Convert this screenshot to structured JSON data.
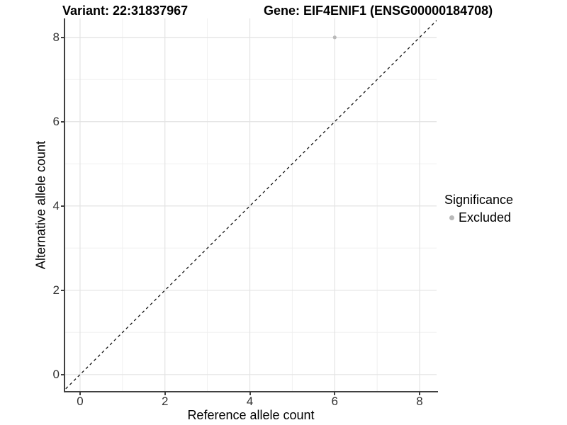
{
  "header": {
    "variant_title": "Variant: 22:31837967",
    "gene_title": "Gene: EIF4ENIF1 (ENSG00000184708)"
  },
  "axes": {
    "x_label": "Reference allele count",
    "y_label": "Alternative allele count",
    "x_tick_labels": [
      "0",
      "2",
      "4",
      "6",
      "8"
    ],
    "y_tick_labels": [
      "0",
      "2",
      "4",
      "6",
      "8"
    ]
  },
  "legend": {
    "title": "Significance",
    "items": [
      {
        "label": "Excluded",
        "color": "#b9b9b9"
      }
    ]
  },
  "colors": {
    "background": "#ffffff",
    "major_gridline": "#e3e3e3",
    "minor_gridline": "#f0f0f0",
    "axis_line": "#404040",
    "tick_text": "#333333",
    "title_text": "#000000",
    "point_excluded": "#b9b9b9",
    "reference_line": "#141414"
  },
  "chart_data": {
    "type": "scatter",
    "title": "Variant: 22:31837967 / Gene: EIF4ENIF1 (ENSG00000184708)",
    "xlabel": "Reference allele count",
    "ylabel": "Alternative allele count",
    "xlim": [
      -0.35,
      8.4
    ],
    "ylim": [
      -0.39,
      8.45
    ],
    "x_major_ticks": [
      0,
      2,
      4,
      6,
      8
    ],
    "x_minor_gridlines": [
      1,
      3,
      5,
      7
    ],
    "y_major_ticks": [
      0,
      2,
      4,
      6,
      8
    ],
    "y_minor_gridlines": [
      1,
      3,
      5,
      7
    ],
    "grid": "major and minor, light grey on white",
    "legend_position": "right",
    "series": [
      {
        "name": "Excluded",
        "color": "#b9b9b9",
        "points": [
          {
            "x": 6,
            "y": 8
          }
        ]
      }
    ],
    "reference_line": {
      "description": "identity line y = x",
      "style": "dashed",
      "color": "#141414",
      "slope": 1,
      "intercept": 0
    }
  }
}
